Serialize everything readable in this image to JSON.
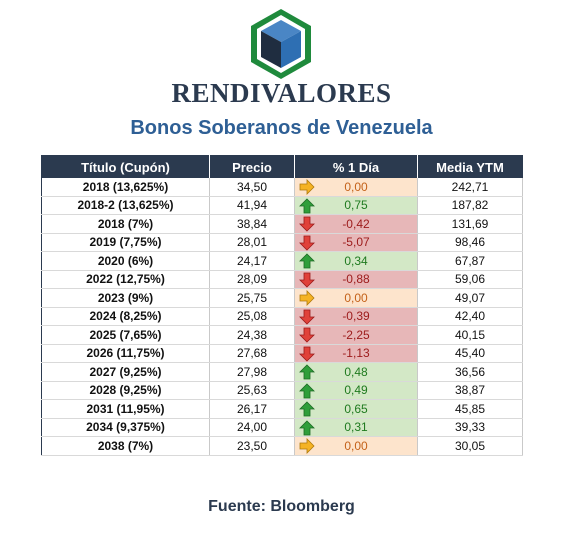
{
  "header": {
    "brand": "RENDIVALORES",
    "subtitle": "Bonos Soberanos de Venezuela"
  },
  "colors": {
    "header_bg": "#2b3a4f",
    "up": "#d3e8c6",
    "down": "#e7b7b8",
    "flat": "#fde4cc",
    "subtitle": "#2e5f95"
  },
  "table": {
    "columns": [
      "Título (Cupón)",
      "Precio",
      "% 1 Día",
      "Media YTM"
    ],
    "rows": [
      {
        "title": "2018 (13,625%)",
        "price": "34,50",
        "change": "0,00",
        "ytm": "242,71",
        "trend": "flat"
      },
      {
        "title": "2018-2 (13,625%)",
        "price": "41,94",
        "change": "0,75",
        "ytm": "187,82",
        "trend": "up"
      },
      {
        "title": "2018 (7%)",
        "price": "38,84",
        "change": "-0,42",
        "ytm": "131,69",
        "trend": "down"
      },
      {
        "title": "2019 (7,75%)",
        "price": "28,01",
        "change": "-5,07",
        "ytm": "98,46",
        "trend": "down"
      },
      {
        "title": "2020 (6%)",
        "price": "24,17",
        "change": "0,34",
        "ytm": "67,87",
        "trend": "up"
      },
      {
        "title": "2022 (12,75%)",
        "price": "28,09",
        "change": "-0,88",
        "ytm": "59,06",
        "trend": "down"
      },
      {
        "title": "2023 (9%)",
        "price": "25,75",
        "change": "0,00",
        "ytm": "49,07",
        "trend": "flat"
      },
      {
        "title": "2024 (8,25%)",
        "price": "25,08",
        "change": "-0,39",
        "ytm": "42,40",
        "trend": "down"
      },
      {
        "title": "2025 (7,65%)",
        "price": "24,38",
        "change": "-2,25",
        "ytm": "40,15",
        "trend": "down"
      },
      {
        "title": "2026 (11,75%)",
        "price": "27,68",
        "change": "-1,13",
        "ytm": "45,40",
        "trend": "down"
      },
      {
        "title": "2027 (9,25%)",
        "price": "27,98",
        "change": "0,48",
        "ytm": "36,56",
        "trend": "up"
      },
      {
        "title": "2028 (9,25%)",
        "price": "25,63",
        "change": "0,49",
        "ytm": "38,87",
        "trend": "up"
      },
      {
        "title": "2031 (11,95%)",
        "price": "26,17",
        "change": "0,65",
        "ytm": "45,85",
        "trend": "up"
      },
      {
        "title": "2034 (9,375%)",
        "price": "24,00",
        "change": "0,31",
        "ytm": "39,33",
        "trend": "up"
      },
      {
        "title": "2038 (7%)",
        "price": "23,50",
        "change": "0,00",
        "ytm": "30,05",
        "trend": "flat"
      }
    ]
  },
  "footer": {
    "source": "Fuente: Bloomberg"
  }
}
